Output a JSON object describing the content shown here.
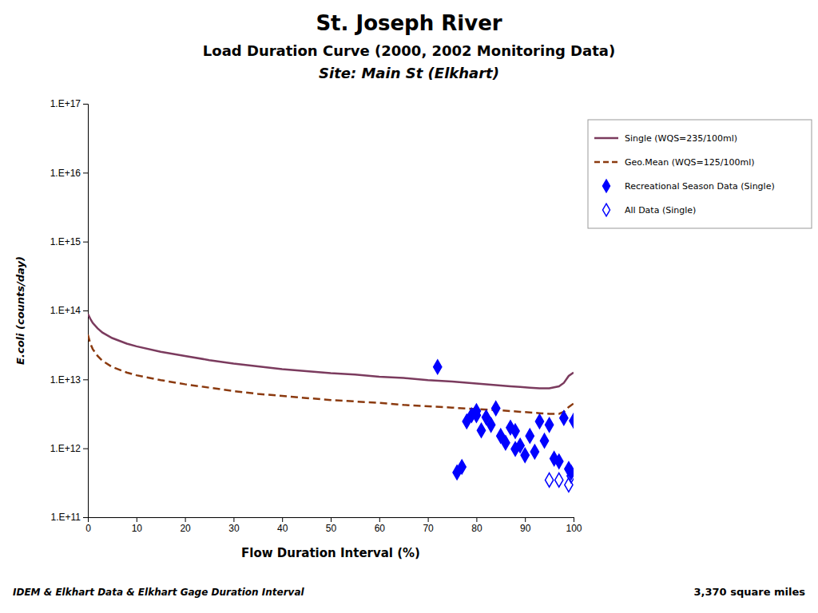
{
  "chart_data": {
    "type": "line",
    "title": "St. Joseph River",
    "subtitle": [
      "Load Duration Curve (2000, 2002 Monitoring Data)",
      "Site: Main St (Elkhart)"
    ],
    "annotations": [
      "IDEM & Elkhart Data & Elkhart Gage Duration Interval",
      "3,370 square miles"
    ],
    "x_label": "Flow Duration Interval (%)",
    "y_label": "E.coli (counts/day)",
    "log": "y",
    "grid": false,
    "legend": "right",
    "xlim": [
      0,
      100
    ],
    "xticks": [
      0,
      10,
      20,
      30,
      40,
      50,
      60,
      70,
      80,
      90,
      100
    ],
    "ylim": [
      100000000000.0,
      1e+17
    ],
    "yticks": [
      {
        "value": 100000000000.0,
        "label": "1.E+11"
      },
      {
        "value": 1000000000000.0,
        "label": "1.E+12"
      },
      {
        "value": 10000000000000.0,
        "label": "1.E+13"
      },
      {
        "value": 100000000000000.0,
        "label": "1.E+14"
      },
      {
        "value": 1000000000000000.0,
        "label": "1.E+15"
      },
      {
        "value": 1e+16,
        "label": "1.E+16"
      },
      {
        "value": 1e+17,
        "label": "1.E+17"
      }
    ],
    "series": [
      {
        "name": "Single (WQS=235/100ml)",
        "type": "line",
        "line_style": "solid",
        "color": "#7B3B5E",
        "x": [
          0,
          0.5,
          1,
          2,
          3,
          5,
          8,
          10,
          15,
          20,
          25,
          30,
          35,
          40,
          45,
          50,
          55,
          60,
          65,
          70,
          75,
          80,
          85,
          87,
          89,
          91,
          93,
          95,
          97,
          98,
          99,
          100
        ],
        "values": [
          89125100000000.0,
          75857800000000.0,
          66069300000000.0,
          54954100000000.0,
          47863000000000.0,
          39810700000000.0,
          33113100000000.0,
          30199500000000.0,
          25118900000000.0,
          21877600000000.0,
          19054600000000.0,
          16982400000000.0,
          15488200000000.0,
          14125400000000.0,
          13182600000000.0,
          12302700000000.0,
          11749000000000.0,
          10964800000000.0,
          10471300000000.0,
          9772370000000.0,
          9332540000000.0,
          8709640000000.0,
          8128310000000.0,
          7943280000000.0,
          7762470000000.0,
          7585780000000.0,
          7413100000000.0,
          7413100000000.0,
          7943280000000.0,
          8912510000000.0,
          11220200000000.0,
          12589300000000.0
        ]
      },
      {
        "name": "Geo.Mean (WQS=125/100ml)",
        "type": "line",
        "line_style": "dashed",
        "color": "#8B3A0F",
        "x": [
          0,
          0.5,
          1,
          2,
          3,
          5,
          8,
          10,
          15,
          20,
          25,
          30,
          35,
          40,
          45,
          50,
          55,
          60,
          65,
          70,
          75,
          80,
          85,
          87,
          89,
          91,
          93,
          95,
          97,
          98,
          99,
          100
        ],
        "values": [
          44668400000000.0,
          33113100000000.0,
          27542300000000.0,
          21877600000000.0,
          18620900000000.0,
          15135600000000.0,
          12589300000000.0,
          11481500000000.0,
          9772370000000.0,
          8511380000000.0,
          7585780000000.0,
          6760830000000.0,
          6165950000000.0,
          5754400000000.0,
          5370320000000.0,
          5011870000000.0,
          4786300000000.0,
          4570880000000.0,
          4265800000000.0,
          4073800000000.0,
          3890450000000.0,
          3715350000000.0,
          3548130000000.0,
          3467370000000.0,
          3388440000000.0,
          3311310000000.0,
          3235940000000.0,
          3162280000000.0,
          3162280000000.0,
          3388440000000.0,
          3981070000000.0,
          4466840000000.0
        ]
      },
      {
        "name": "Recreational Season Data (Single)",
        "type": "scatter",
        "marker": "diamond",
        "color": "#0000FF",
        "x": [
          72,
          76,
          77,
          78,
          79,
          80,
          80,
          81,
          82,
          83,
          84,
          85,
          86,
          87,
          88,
          88,
          89,
          90,
          91,
          92,
          93,
          94,
          95,
          96,
          97,
          98,
          99,
          99.5,
          100
        ],
        "values": [
          15135600000000.0,
          446684000000.0,
          537032000000.0,
          2454710000000.0,
          3019950000000.0,
          3467370000000.0,
          3019950000000.0,
          1819700000000.0,
          2818380000000.0,
          2187760000000.0,
          3801890000000.0,
          1513560000000.0,
          1202260000000.0,
          1995260000000.0,
          977237000000.0,
          1778280000000.0,
          1096480000000.0,
          794328000000.0,
          1513560000000.0,
          891251000000.0,
          2454710000000.0,
          1288250000000.0,
          2187760000000.0,
          707946000000.0,
          645654000000.0,
          2754230000000.0,
          501187000000.0,
          446684000000.0,
          2511890000000.0
        ]
      },
      {
        "name": "All Data (Single)",
        "type": "scatter",
        "marker": "diamond-open",
        "color": "#0000FF",
        "x": [
          95,
          97,
          99.5,
          99
        ],
        "values": [
          346737000000.0,
          346737000000.0,
          398107000000.0,
          295121000000.0
        ]
      }
    ]
  }
}
